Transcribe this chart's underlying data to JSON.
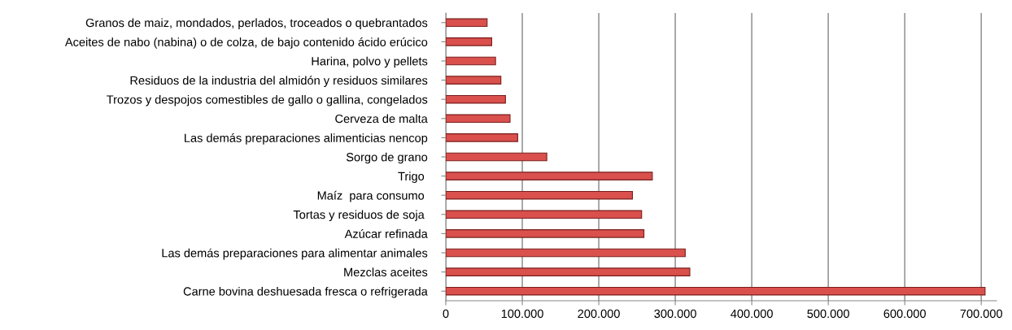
{
  "chart_data": {
    "type": "bar",
    "orientation": "horizontal",
    "categories": [
      "Granos de maiz, mondados, perlados, troceados o quebrantados",
      "Aceites de nabo (nabina) o de colza, de bajo contenido ácido erúcico",
      "Harina, polvo y pellets",
      "Residuos de la industria del almidón y residuos similares",
      "Trozos y despojos comestibles de gallo o gallina, congelados",
      "Cerveza de malta",
      "Las demás preparaciones alimenticias nencop",
      "Sorgo de grano",
      "Trigo ",
      "Maíz  para consumo ",
      "Tortas y residuos de soja ",
      "Azúcar refinada",
      "Las demás preparaciones para alimentar animales",
      "Mezclas aceites",
      "Carne bovina deshuesada fresca o refrigerada"
    ],
    "values": [
      54000,
      60000,
      65000,
      72000,
      78000,
      84000,
      94000,
      132000,
      270000,
      244000,
      256000,
      259000,
      313000,
      319000,
      705000
    ],
    "color": "#d9504d",
    "xlim": [
      0,
      720000
    ],
    "xticks": [
      {
        "value": 0,
        "label": "0"
      },
      {
        "value": 100000,
        "label": "100.000"
      },
      {
        "value": 200000,
        "label": "200.000"
      },
      {
        "value": 300000,
        "label": "300.000"
      },
      {
        "value": 400000,
        "label": "400.000"
      },
      {
        "value": 500000,
        "label": "500.000"
      },
      {
        "value": 600000,
        "label": "600.000"
      },
      {
        "value": 700000,
        "label": "700.000"
      }
    ],
    "grid": "x"
  }
}
